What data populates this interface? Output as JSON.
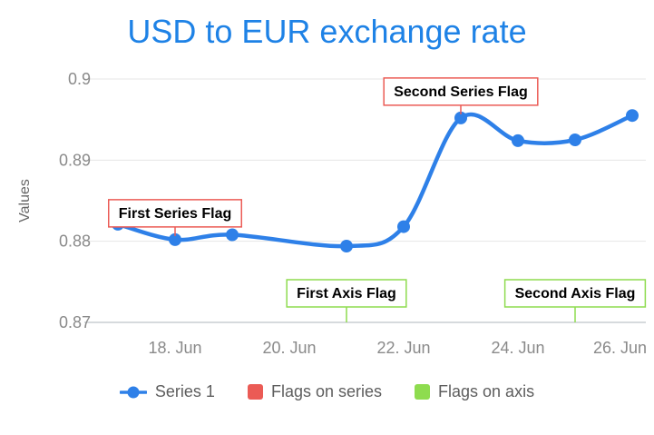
{
  "title": "USD to EUR exchange rate",
  "colors": {
    "title": "#1e82e6",
    "series": "#2e80e8",
    "flags_series": "#eb5b55",
    "flags_axis": "#8edc4f",
    "gridline": "#e6e6e6",
    "axis_line": "#c9cdd2",
    "tick_label": "#8a8a8a",
    "axis_title": "#666666",
    "legend_text": "#5e5e5e",
    "flag_text": "#000000",
    "flag_fill": "#ffffff"
  },
  "chart_data": {
    "type": "line",
    "title": "USD to EUR exchange rate",
    "xlabel": "",
    "ylabel": "Values",
    "ylim": [
      0.87,
      0.9
    ],
    "grid": true,
    "legend_position": "bottom",
    "series": [
      {
        "name": "Series 1",
        "points": [
          {
            "date": "17. Jun",
            "day": 0,
            "value": 0.8821
          },
          {
            "date": "18. Jun",
            "day": 1,
            "value": 0.8802
          },
          {
            "date": "19. Jun",
            "day": 2,
            "value": 0.8808
          },
          {
            "date": "21. Jun",
            "day": 4,
            "value": 0.8794
          },
          {
            "date": "22. Jun",
            "day": 5,
            "value": 0.8818
          },
          {
            "date": "23. Jun",
            "day": 6,
            "value": 0.8952
          },
          {
            "date": "24. Jun",
            "day": 7,
            "value": 0.8924
          },
          {
            "date": "25. Jun",
            "day": 8,
            "value": 0.8925
          },
          {
            "date": "26. Jun",
            "day": 9,
            "value": 0.8955
          }
        ]
      }
    ],
    "yticks": [
      {
        "label": "0.9",
        "value": 0.9
      },
      {
        "label": "0.89",
        "value": 0.89
      },
      {
        "label": "0.88",
        "value": 0.88
      },
      {
        "label": "0.87",
        "value": 0.87
      }
    ],
    "xticks": [
      {
        "label": "18. Jun",
        "day": 1
      },
      {
        "label": "20. Jun",
        "day": 3
      },
      {
        "label": "22. Jun",
        "day": 5
      },
      {
        "label": "24. Jun",
        "day": 7
      },
      {
        "label": "26. Jun",
        "day": 9
      }
    ],
    "flags_on_series": [
      {
        "label": "First Series Flag",
        "point_index": 1
      },
      {
        "label": "Second Series Flag",
        "point_index": 5
      }
    ],
    "flags_on_axis": [
      {
        "label": "First Axis Flag",
        "day": 4
      },
      {
        "label": "Second Axis Flag",
        "day": 8
      }
    ]
  },
  "legend": {
    "items": [
      {
        "label": "Series 1",
        "marker": "line-dot",
        "color_key": "series"
      },
      {
        "label": "Flags on series",
        "marker": "square",
        "color_key": "flags_series"
      },
      {
        "label": "Flags on axis",
        "marker": "square",
        "color_key": "flags_axis"
      }
    ]
  }
}
